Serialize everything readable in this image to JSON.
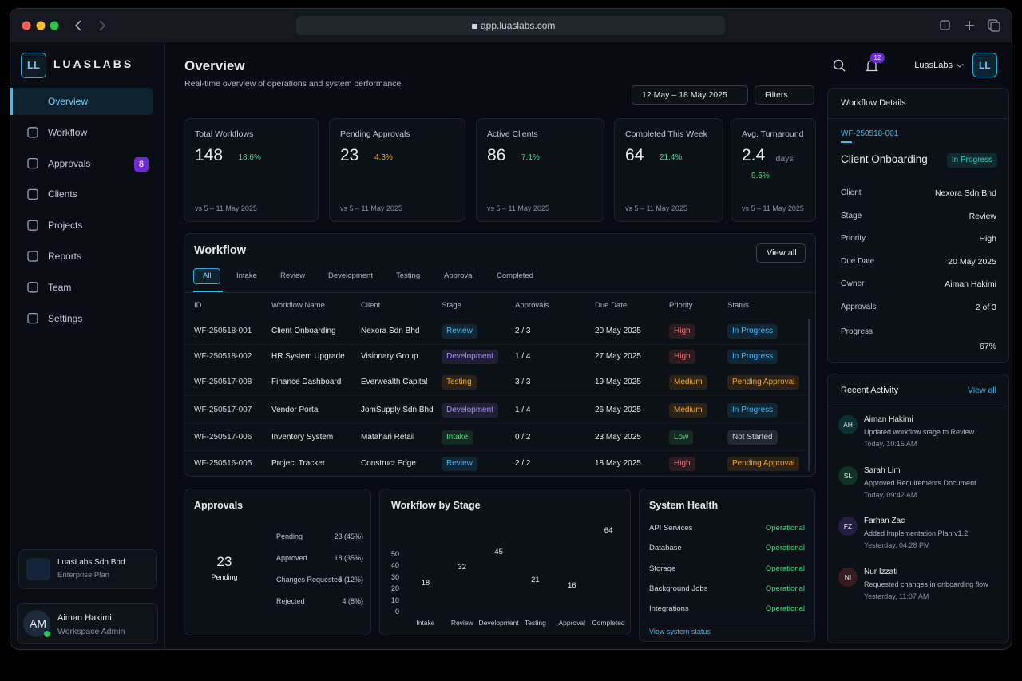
{
  "browser": {
    "url": "app.luaslabs.com"
  },
  "sidebar": {
    "logo": "LL",
    "brand": "LUASLABS",
    "nav": [
      {
        "label": "Overview"
      },
      {
        "label": "Workflow"
      },
      {
        "label": "Approvals",
        "badge": "8"
      },
      {
        "label": "Clients"
      },
      {
        "label": "Projects"
      },
      {
        "label": "Reports"
      },
      {
        "label": "Team"
      },
      {
        "label": "Settings"
      }
    ],
    "org": {
      "name": "LuasLabs Sdn Bhd",
      "plan": "Enterprise Plan"
    },
    "user": {
      "initials": "AM",
      "name": "Aiman Hakimi",
      "role": "Workspace Admin"
    }
  },
  "header": {
    "title": "Overview",
    "subtitle": "Real-time overview of operations and system performance.",
    "notifications": "12",
    "account": "LuasLabs",
    "avatar": "LL",
    "date_range": "12 May – 18 May 2025",
    "filters": "Filters"
  },
  "kpis": [
    {
      "label": "Total Workflows",
      "value": "148",
      "change": "18.6%",
      "direction": "up",
      "change_color": "#3ddc84",
      "color": "#35c8f0",
      "compare": "vs 5 – 11 May 2025"
    },
    {
      "label": "Pending Approvals",
      "value": "23",
      "change": "4.3%",
      "direction": "up",
      "change_color": "#f5a524",
      "color": "#f5a524",
      "compare": "vs 5 – 11 May 2025"
    },
    {
      "label": "Active Clients",
      "value": "86",
      "change": "7.1%",
      "direction": "up",
      "change_color": "#3ddc84",
      "color": "#35c8f0",
      "compare": "vs 5 – 11 May 2025"
    },
    {
      "label": "Completed This Week",
      "value": "64",
      "change": "21.4%",
      "direction": "up",
      "change_color": "#3ddc84",
      "color": "#8b5cf6",
      "compare": "vs 5 – 11 May 2025"
    },
    {
      "label": "Avg. Turnaround",
      "value": "2.4",
      "unit": "days",
      "change": "9.5%",
      "direction": "down",
      "change_color": "#3ddc84",
      "compare": "vs 5 – 11 May 2025"
    }
  ],
  "workflow": {
    "title": "Workflow",
    "view_all": "View all",
    "tabs": [
      "All",
      "Intake",
      "Review",
      "Development",
      "Testing",
      "Approval",
      "Completed"
    ],
    "columns": [
      "ID",
      "Workflow Name",
      "Client",
      "Stage",
      "Approvals",
      "Due Date",
      "Priority",
      "Status"
    ],
    "rows": [
      {
        "id": "WF-250518-001",
        "name": "Client Onboarding",
        "client": "Nexora Sdn Bhd",
        "stage": "Review",
        "stage_color": "#38bdf8",
        "approvals": "2 / 3",
        "due": "20 May 2025",
        "priority": "High",
        "priority_color": "#f87171",
        "status": "In Progress",
        "status_color": "#38bdf8"
      },
      {
        "id": "WF-250518-002",
        "name": "HR System Upgrade",
        "client": "Visionary Group",
        "stage": "Development",
        "stage_color": "#a78bfa",
        "approvals": "1 / 4",
        "due": "27 May 2025",
        "priority": "High",
        "priority_color": "#f87171",
        "status": "In Progress",
        "status_color": "#38bdf8"
      },
      {
        "id": "WF-250517-008",
        "name": "Finance Dashboard",
        "client": "Everwealth Capital",
        "stage": "Testing",
        "stage_color": "#f5a524",
        "approvals": "3 / 3",
        "due": "19 May 2025",
        "priority": "Medium",
        "priority_color": "#f5a524",
        "status": "Pending Approval",
        "status_color": "#f5a524"
      },
      {
        "id": "WF-250517-007",
        "name": "Vendor Portal",
        "client": "JomSupply Sdn Bhd",
        "stage": "Development",
        "stage_color": "#a78bfa",
        "approvals": "1 / 4",
        "due": "26 May 2025",
        "priority": "Medium",
        "priority_color": "#f5a524",
        "status": "In Progress",
        "status_color": "#38bdf8"
      },
      {
        "id": "WF-250517-006",
        "name": "Inventory System",
        "client": "Matahari Retail",
        "stage": "Intake",
        "stage_color": "#4ade80",
        "approvals": "0 / 2",
        "due": "23 May 2025",
        "priority": "Low",
        "priority_color": "#4ade80",
        "status": "Not Started",
        "status_color": "#cbd5e1"
      },
      {
        "id": "WF-250516-005",
        "name": "Project Tracker",
        "client": "Construct Edge",
        "stage": "Review",
        "stage_color": "#38bdf8",
        "approvals": "2 / 2",
        "due": "18 May 2025",
        "priority": "High",
        "priority_color": "#f87171",
        "status": "Pending Approval",
        "status_color": "#f5a524"
      }
    ]
  },
  "chart_data": [
    {
      "type": "pie",
      "title": "Approvals",
      "center_label": "Pending",
      "categories": [
        "Pending",
        "Approved",
        "Changes Requested",
        "Rejected"
      ],
      "values": [
        23,
        18,
        6,
        4
      ],
      "value_labels": [
        "23 (45%)",
        "18 (35%)",
        "6 (12%)",
        "4 (8%)"
      ],
      "colors": [
        "#f59e0b",
        "#3ddc4a",
        "#7c3aed",
        "#ef4444"
      ]
    },
    {
      "type": "bar",
      "title": "Workflow by Stage",
      "categories": [
        "Intake",
        "Review",
        "Development",
        "Testing",
        "Approval",
        "Completed"
      ],
      "values": [
        18,
        32,
        45,
        21,
        16,
        64
      ],
      "colors": [
        "#14b8c4",
        "#2563eb",
        "#7c3aed",
        "#f59e0b",
        "#22c55e",
        "#0ea5e9"
      ],
      "ylim": [
        0,
        70
      ],
      "yticks": [
        0,
        10,
        20,
        30,
        40,
        50
      ]
    }
  ],
  "system_health": {
    "title": "System Health",
    "items": [
      {
        "name": "API Services",
        "status": "Operational"
      },
      {
        "name": "Database",
        "status": "Operational"
      },
      {
        "name": "Storage",
        "status": "Operational"
      },
      {
        "name": "Background Jobs",
        "status": "Operational"
      },
      {
        "name": "Integrations",
        "status": "Operational"
      }
    ],
    "link": "View system status"
  },
  "details": {
    "title": "Workflow Details",
    "id": "WF-250518-001",
    "name": "Client Onboarding",
    "status": "In Progress",
    "fields": [
      {
        "label": "Client",
        "value": "Nexora Sdn Bhd"
      },
      {
        "label": "Stage",
        "value": "Review"
      },
      {
        "label": "Priority",
        "value": "High"
      },
      {
        "label": "Due Date",
        "value": "20 May 2025"
      },
      {
        "label": "Owner",
        "value": "Aiman Hakimi"
      },
      {
        "label": "Approvals",
        "value": "2 of 3"
      }
    ],
    "progress_label": "Progress",
    "progress": {
      "value": 67,
      "label": "67%"
    }
  },
  "activity": {
    "title": "Recent Activity",
    "view_all": "View all",
    "items": [
      {
        "initials": "AH",
        "name": "Aiman Hakimi",
        "action": "Updated workflow stage to Review",
        "time": "Today, 10:15 AM",
        "color": "#14b8a6"
      },
      {
        "initials": "SL",
        "name": "Sarah Lim",
        "action": "Approved Requirements Document",
        "time": "Today, 09:42 AM",
        "color": "#22c55e"
      },
      {
        "initials": "FZ",
        "name": "Farhan Zac",
        "action": "Added Implementation Plan v1.2",
        "time": "Yesterday, 04:28 PM",
        "color": "#8b5cf6"
      },
      {
        "initials": "NI",
        "name": "Nur Izzati",
        "action": "Requested changes in onboarding flow",
        "time": "Yesterday, 11:07 AM",
        "color": "#ef4444"
      }
    ]
  }
}
